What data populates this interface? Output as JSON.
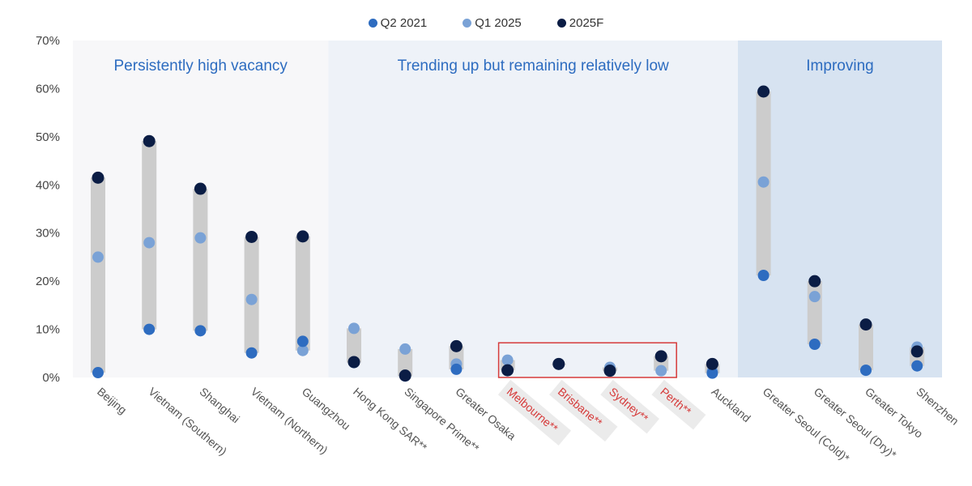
{
  "chart_data": {
    "type": "scatter",
    "title": "",
    "xlabel": "",
    "ylabel": "",
    "ylim": [
      0,
      70
    ],
    "yticks": [
      "0%",
      "10%",
      "20%",
      "30%",
      "40%",
      "50%",
      "60%",
      "70%"
    ],
    "categories": [
      "Beijing",
      "Vietnam (Southern)",
      "Shanghai",
      "Vietnam (Northern)",
      "Guangzhou",
      "Hong Kong SAR**",
      "Singapore Prime**",
      "Greater Osaka",
      "Melbourne**",
      "Brisbane**",
      "Sydney**",
      "Perth**",
      "Auckland",
      "Greater Seoul (Cold)*",
      "Greater Seoul (Dry)*",
      "Greater Tokyo",
      "Shenzhen"
    ],
    "highlighted_categories": [
      "Melbourne**",
      "Brisbane**",
      "Sydney**",
      "Perth**"
    ],
    "series": [
      {
        "name": "Q2 2021",
        "color": "#2e6cc0",
        "values": [
          1.0,
          10.0,
          9.7,
          5.1,
          7.5,
          3.1,
          0.3,
          1.7,
          1.5,
          2.8,
          1.5,
          4.4,
          0.9,
          21.2,
          6.9,
          1.5,
          2.4
        ]
      },
      {
        "name": "Q1 2025",
        "color": "#7aa2d6",
        "values": [
          25.0,
          28.0,
          29.0,
          16.2,
          5.6,
          10.2,
          5.9,
          2.8,
          3.6,
          2.8,
          2.1,
          1.4,
          1.3,
          40.6,
          16.8,
          1.5,
          6.3
        ]
      },
      {
        "name": "2025F",
        "color": "#0b1d45",
        "values": [
          41.5,
          49.1,
          39.2,
          29.2,
          29.3,
          3.2,
          0.4,
          6.5,
          1.5,
          2.8,
          1.4,
          4.4,
          2.8,
          59.4,
          20.0,
          11.0,
          5.4
        ]
      }
    ],
    "regions": [
      {
        "label": "Persistently high vacancy",
        "start": 0,
        "end": 4,
        "color": "#f7f7f9"
      },
      {
        "label": "Trending up but remaining relatively low",
        "start": 5,
        "end": 12,
        "color": "#eef2f8"
      },
      {
        "label": "Improving",
        "start": 13,
        "end": 16,
        "color": "#d7e3f1"
      }
    ],
    "legend_position": "top-center",
    "colors": {
      "range_bar": "#cccccc",
      "highlight_box": "#d63b3b",
      "highlight_label": "#d63b3b",
      "label_badge": "#ebebeb",
      "tick_text": "#555555"
    }
  }
}
